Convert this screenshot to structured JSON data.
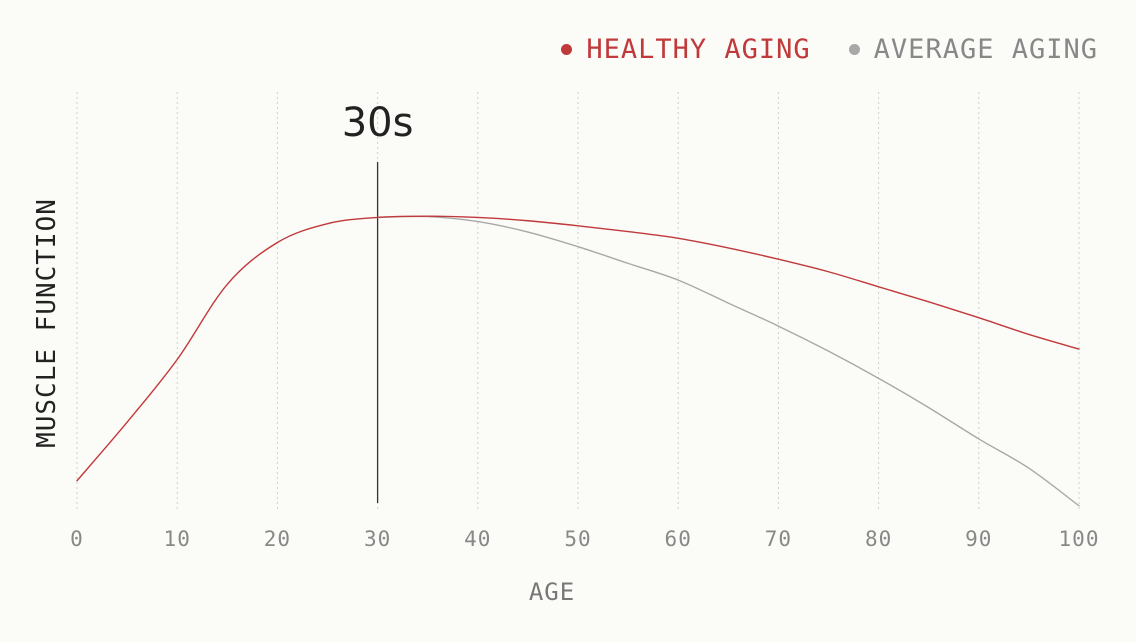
{
  "chart_data": {
    "type": "line",
    "xlabel": "AGE",
    "ylabel": "MUSCLE FUNCTION",
    "xlim": [
      0,
      100
    ],
    "ylim": [
      0,
      100
    ],
    "x_ticks": [
      "0",
      "10",
      "20",
      "30",
      "40",
      "50",
      "60",
      "70",
      "80",
      "90",
      "100"
    ],
    "grid": "vertical dotted",
    "legend": "top-right",
    "series": [
      {
        "name": "HEALTHY AGING",
        "color": "#c0393b",
        "x": [
          0,
          5,
          10,
          15,
          20,
          25,
          30,
          35,
          40,
          45,
          50,
          55,
          60,
          65,
          70,
          75,
          80,
          85,
          90,
          95,
          100
        ],
        "values": [
          7,
          21,
          36,
          54,
          64,
          68.5,
          70,
          70.3,
          70,
          69.2,
          68,
          66.6,
          65,
          62.7,
          60,
          57,
          53.4,
          49.8,
          46,
          42,
          38.5
        ]
      },
      {
        "name": "AVERAGE AGING",
        "color": "#a8a8a8",
        "x": [
          30,
          35,
          40,
          45,
          50,
          55,
          60,
          65,
          70,
          75,
          80,
          85,
          90,
          95,
          100
        ],
        "values": [
          70,
          70.2,
          69,
          66.5,
          63,
          59,
          55,
          49.5,
          44,
          38,
          31.5,
          24.5,
          17,
          10,
          1
        ]
      }
    ],
    "annotations": [
      {
        "x": 30,
        "text": "30s",
        "style": "vertical-line"
      }
    ]
  }
}
